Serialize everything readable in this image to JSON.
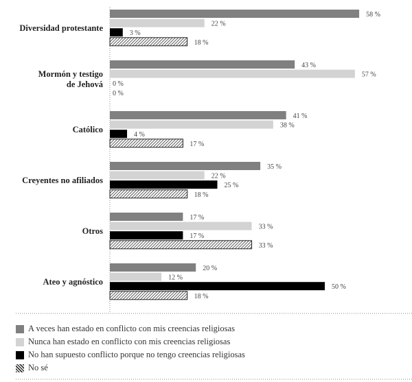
{
  "chart_data": {
    "type": "bar",
    "orientation": "horizontal",
    "categories": [
      "Diversidad protestante",
      "Mormón y testigo de Jehová",
      "Católico",
      "Creyentes no afiliados",
      "Otros",
      "Ateo y agnóstico"
    ],
    "series": [
      {
        "name": "A veces han estado en conflicto con mis creencias religiosas",
        "color": "#808080",
        "pattern": "solid",
        "values": [
          58,
          43,
          41,
          35,
          17,
          20
        ]
      },
      {
        "name": "Nunca han estado en conflicto con mis creencias religiosas",
        "color": "#d3d3d3",
        "pattern": "solid",
        "values": [
          22,
          57,
          38,
          22,
          33,
          12
        ]
      },
      {
        "name": "No han supuesto conflicto porque no tengo creencias religiosas",
        "color": "#000000",
        "pattern": "solid",
        "values": [
          3,
          0,
          4,
          25,
          17,
          50
        ]
      },
      {
        "name": "No sé",
        "color": "#ffffff",
        "pattern": "hatched",
        "values": [
          18,
          0,
          17,
          18,
          33,
          18
        ]
      }
    ],
    "value_suffix": " %",
    "xlim": [
      0,
      60
    ],
    "legend_position": "bottom",
    "grid": false
  }
}
